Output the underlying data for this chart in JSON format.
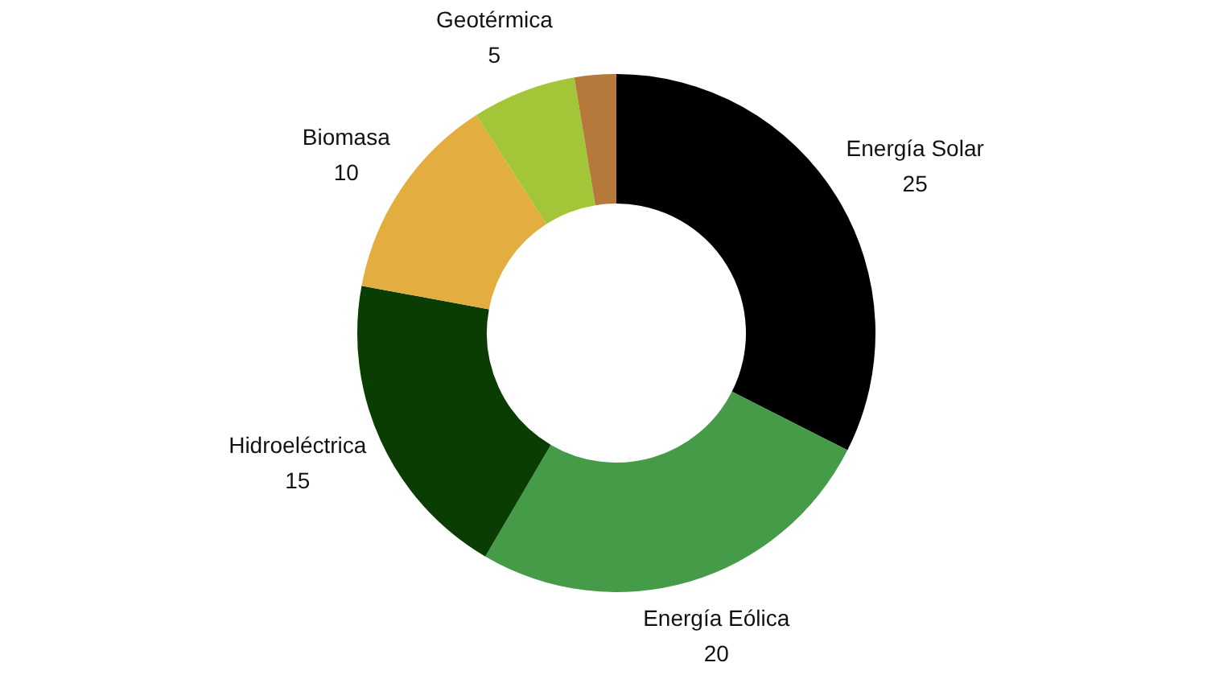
{
  "chart_data": {
    "type": "donut",
    "categories": [
      "Energía Solar",
      "Energía Eólica",
      "Hidroeléctrica",
      "Biomasa",
      "Geotérmica",
      null
    ],
    "values": [
      25,
      20,
      15,
      10,
      5,
      2
    ],
    "colors": [
      "#000000",
      "#469b48",
      "#0a3d02",
      "#e3ae3f",
      "#a2c637",
      "#b57a3b"
    ],
    "value_labels": [
      "25",
      "20",
      "15",
      "10",
      "5",
      null
    ]
  }
}
